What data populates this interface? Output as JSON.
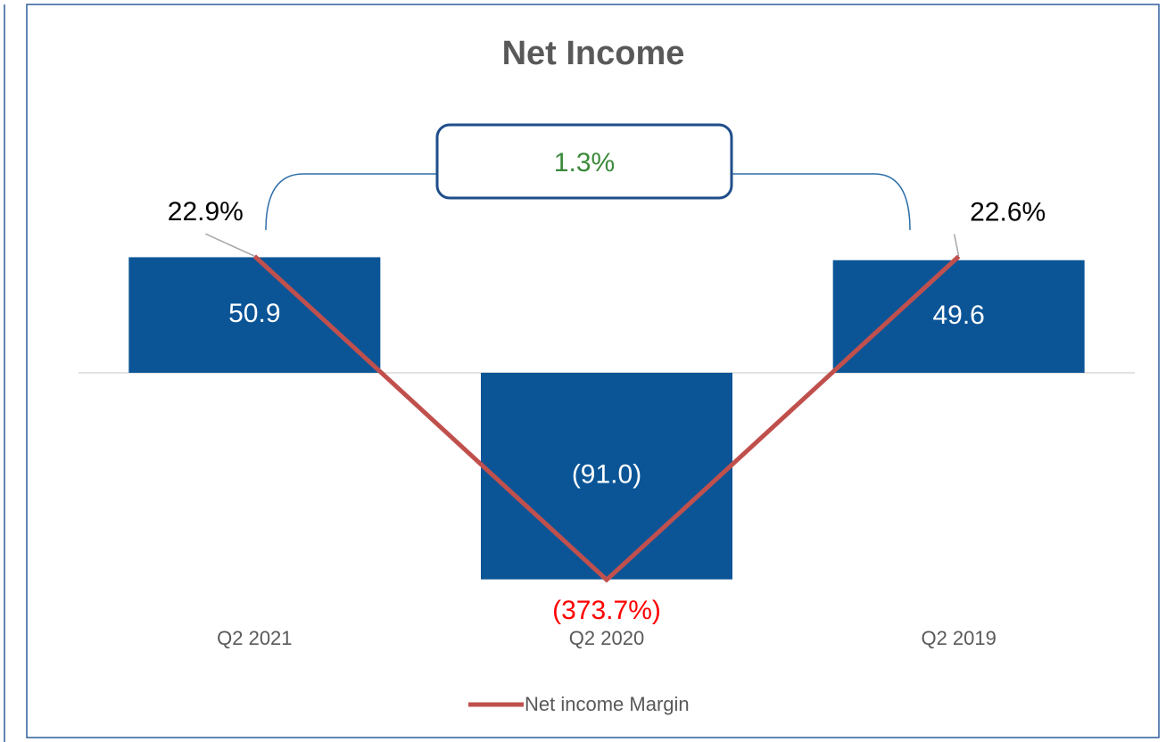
{
  "chart_data": {
    "type": "bar",
    "title": "Net Income",
    "categories": [
      "Q2 2021",
      "Q2 2020",
      "Q2 2019"
    ],
    "series": [
      {
        "name": "Net income",
        "type": "bar",
        "color": "#0b5597",
        "values": [
          50.9,
          -91.0,
          49.6
        ],
        "value_labels": [
          "50.9",
          "(91.0)",
          "49.6"
        ]
      },
      {
        "name": "Net income Margin",
        "type": "line",
        "axis": "y2",
        "color": "#c0504d",
        "values": [
          22.9,
          -373.7,
          22.6
        ],
        "value_labels": [
          "22.9%",
          "(373.7%)",
          "22.6%"
        ],
        "label_colors": [
          "#000000",
          "#ff0000",
          "#000000"
        ]
      }
    ],
    "ylim": [
      -110,
      110
    ],
    "y2lim": [
      -426,
      186
    ],
    "annotation": "1.3%",
    "annotation_color": "#3a8a3a",
    "legend": "bottom",
    "legend_series": [
      1
    ]
  }
}
